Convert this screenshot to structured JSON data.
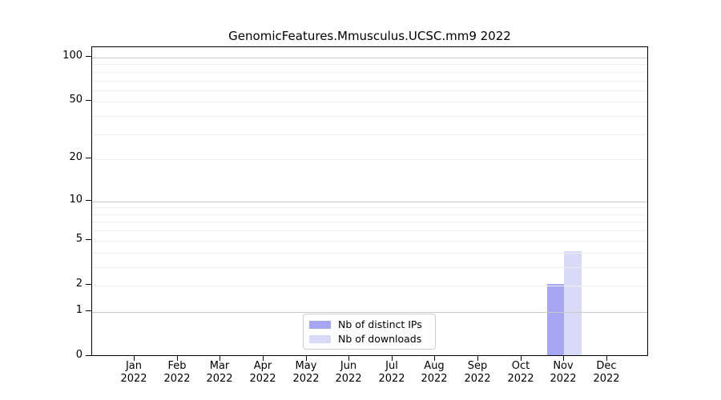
{
  "chart_data": {
    "type": "bar",
    "title": "GenomicFeatures.Mmusculus.UCSC.mm9 2022",
    "categories": [
      "Jan",
      "Feb",
      "Mar",
      "Apr",
      "May",
      "Jun",
      "Jul",
      "Aug",
      "Sep",
      "Oct",
      "Nov",
      "Dec"
    ],
    "x_tick_year": "2022",
    "series": [
      {
        "name": "Nb of distinct IPs",
        "color": "#a6a6f2",
        "values": [
          0,
          0,
          0,
          0,
          0,
          0,
          0,
          0,
          0,
          0,
          2,
          0
        ]
      },
      {
        "name": "Nb of downloads",
        "color": "#d9d9f8",
        "values": [
          0,
          0,
          0,
          0,
          0,
          0,
          0,
          0,
          0,
          0,
          4,
          0
        ]
      }
    ],
    "y_axis": {
      "scale": "log1p",
      "range": [
        0,
        100
      ],
      "ticks": [
        0,
        1,
        2,
        5,
        10,
        20,
        50,
        100
      ],
      "gridlines": [
        1,
        2,
        3,
        4,
        5,
        6,
        7,
        8,
        9,
        10,
        20,
        30,
        40,
        50,
        60,
        70,
        80,
        90,
        100
      ],
      "major_gridlines": [
        1,
        10,
        100
      ]
    },
    "legend": {
      "position": "bottom-center"
    },
    "colors": {
      "grid_minor": "#efefef",
      "grid_major": "#c9c9c9",
      "axis": "#000000",
      "background": "#ffffff"
    }
  }
}
